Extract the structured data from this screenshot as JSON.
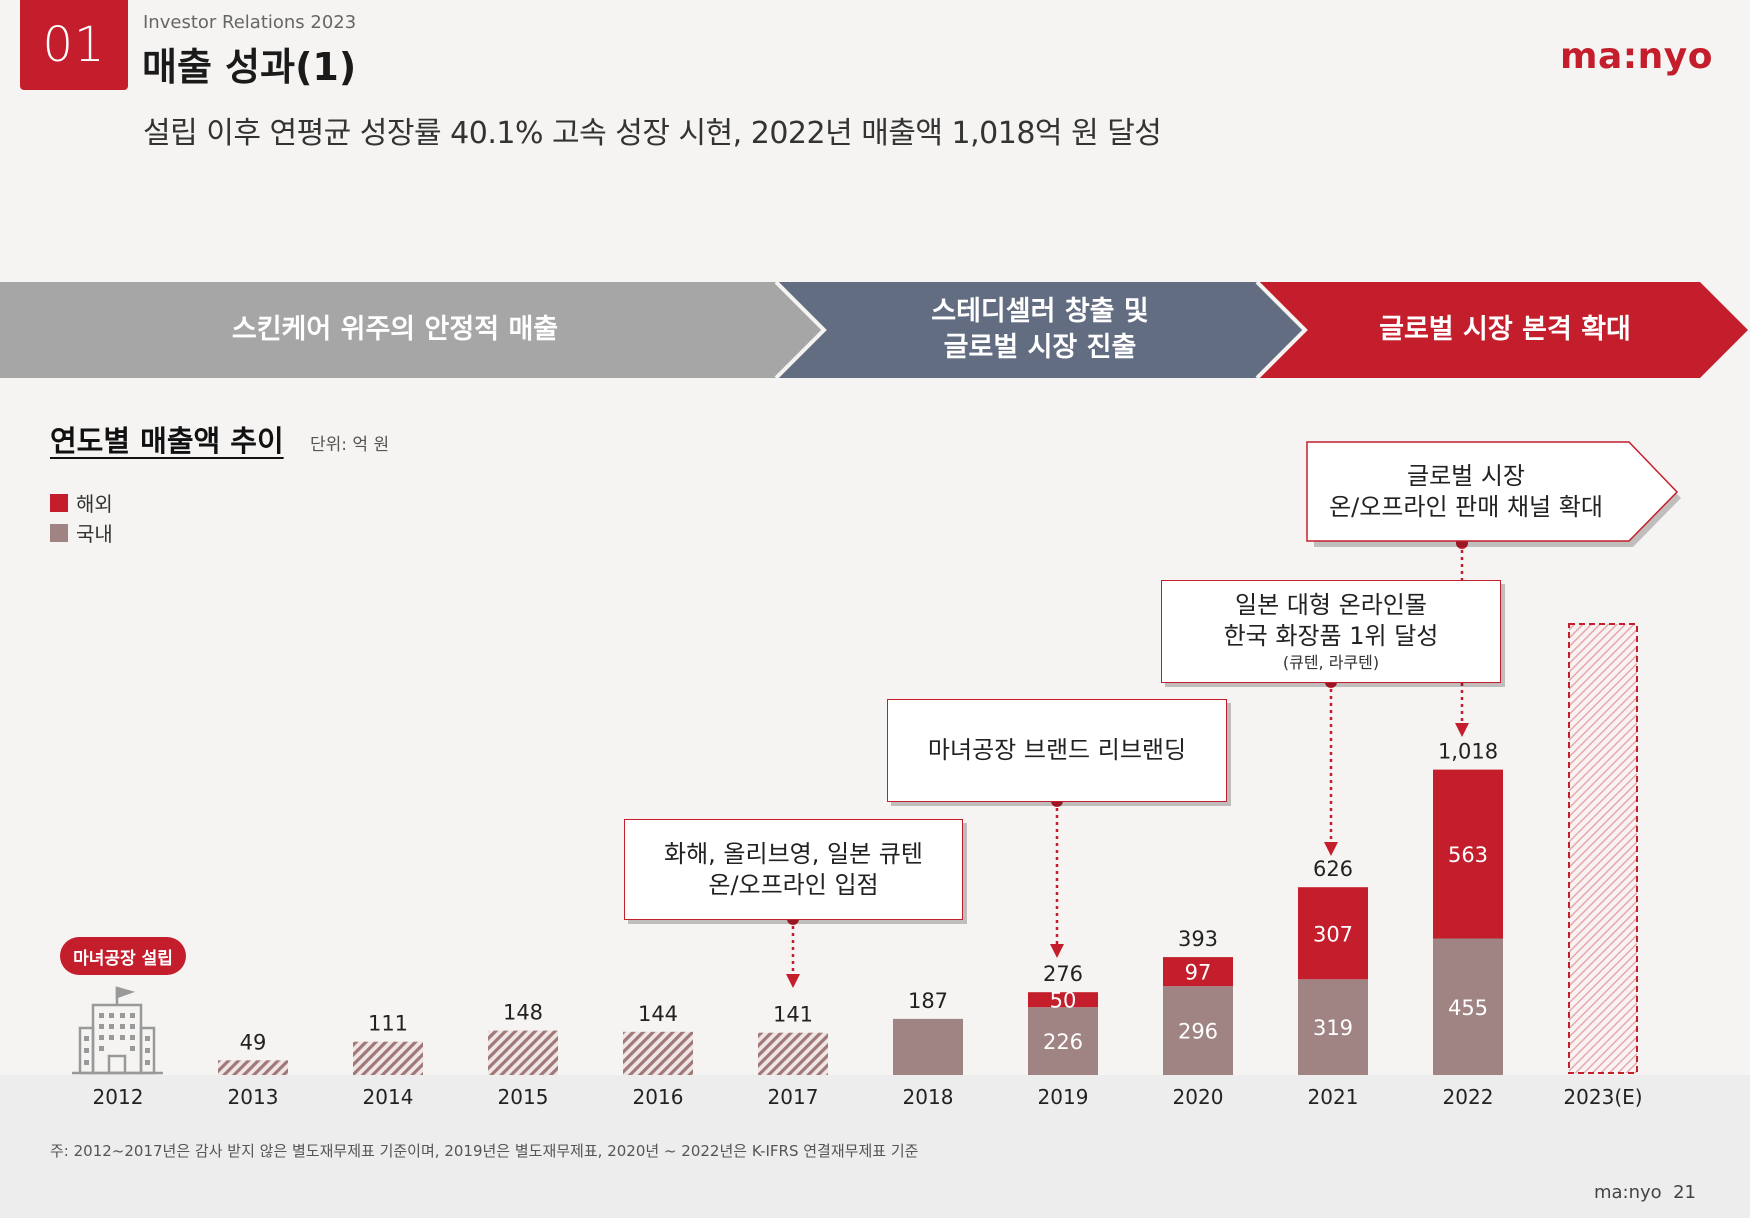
{
  "header": {
    "section_number": "01",
    "ir_label": "Investor Relations 2023",
    "title": "매출 성과(1)",
    "logo": "ma:nyo",
    "subtitle": "설립 이후 연평균 성장률 40.1% 고속 성장 시현, 2022년 매출액 1,018억 원 달성"
  },
  "phases": [
    {
      "label": "스킨케어 위주의 안정적 매출",
      "color": "#a6a6a6"
    },
    {
      "label": "스테디셀러 창출 및\n글로벌 시장 진출",
      "color": "#636d82"
    },
    {
      "label": "글로벌 시장 본격 확대",
      "color": "#c41e2d"
    }
  ],
  "chart_section": {
    "title": "연도별 매출액 추이",
    "unit": "단위: 억 원",
    "legend": {
      "overseas": "해외",
      "domestic": "국내"
    },
    "founded_label": "마녀공장 설립"
  },
  "callouts": {
    "c2017": {
      "line1": "화해, 올리브영, 일본 큐텐",
      "line2": "온/오프라인 입점"
    },
    "c2019": {
      "line1": "마녀공장 브랜드 리브랜딩"
    },
    "c2021": {
      "line1": "일본 대형 온라인몰",
      "line2": "한국 화장품 1위 달성",
      "line3": "(큐텐, 라쿠텐)"
    },
    "c2022": {
      "line1": "글로벌 시장",
      "line2": "온/오프라인 판매 채널 확대"
    }
  },
  "colors": {
    "brand_red": "#c41e2d",
    "domestic": "#a08484",
    "hatch_line": "#a07878",
    "estimate_hatch": "#e3a9ad"
  },
  "chart_data": {
    "type": "bar",
    "stacked": true,
    "title": "연도별 매출액 추이",
    "unit": "억 원",
    "categories": [
      "2012",
      "2013",
      "2014",
      "2015",
      "2016",
      "2017",
      "2018",
      "2019",
      "2020",
      "2021",
      "2022",
      "2023(E)"
    ],
    "series": [
      {
        "name": "국내",
        "values": [
          null,
          49,
          111,
          148,
          144,
          141,
          187,
          226,
          296,
          319,
          455,
          null
        ]
      },
      {
        "name": "해외",
        "values": [
          null,
          null,
          null,
          null,
          null,
          null,
          null,
          50,
          97,
          307,
          563,
          null
        ]
      }
    ],
    "totals": [
      "",
      "49",
      "111",
      "148",
      "144",
      "141",
      "187",
      "276",
      "393",
      "626",
      "1,018",
      ""
    ],
    "hatched_years": [
      "2013",
      "2014",
      "2015",
      "2016",
      "2017"
    ],
    "estimated_years": [
      "2023(E)"
    ],
    "legend_position": "top-left"
  },
  "footnote": "주: 2012~2017년은 감사 받지 않은 별도재무제표 기준이며, 2019년은 별도재무제표, 2020년 ~ 2022년은 K-IFRS 연결재무제표 기준",
  "footer": {
    "brand": "ma:nyo",
    "page": "21"
  }
}
